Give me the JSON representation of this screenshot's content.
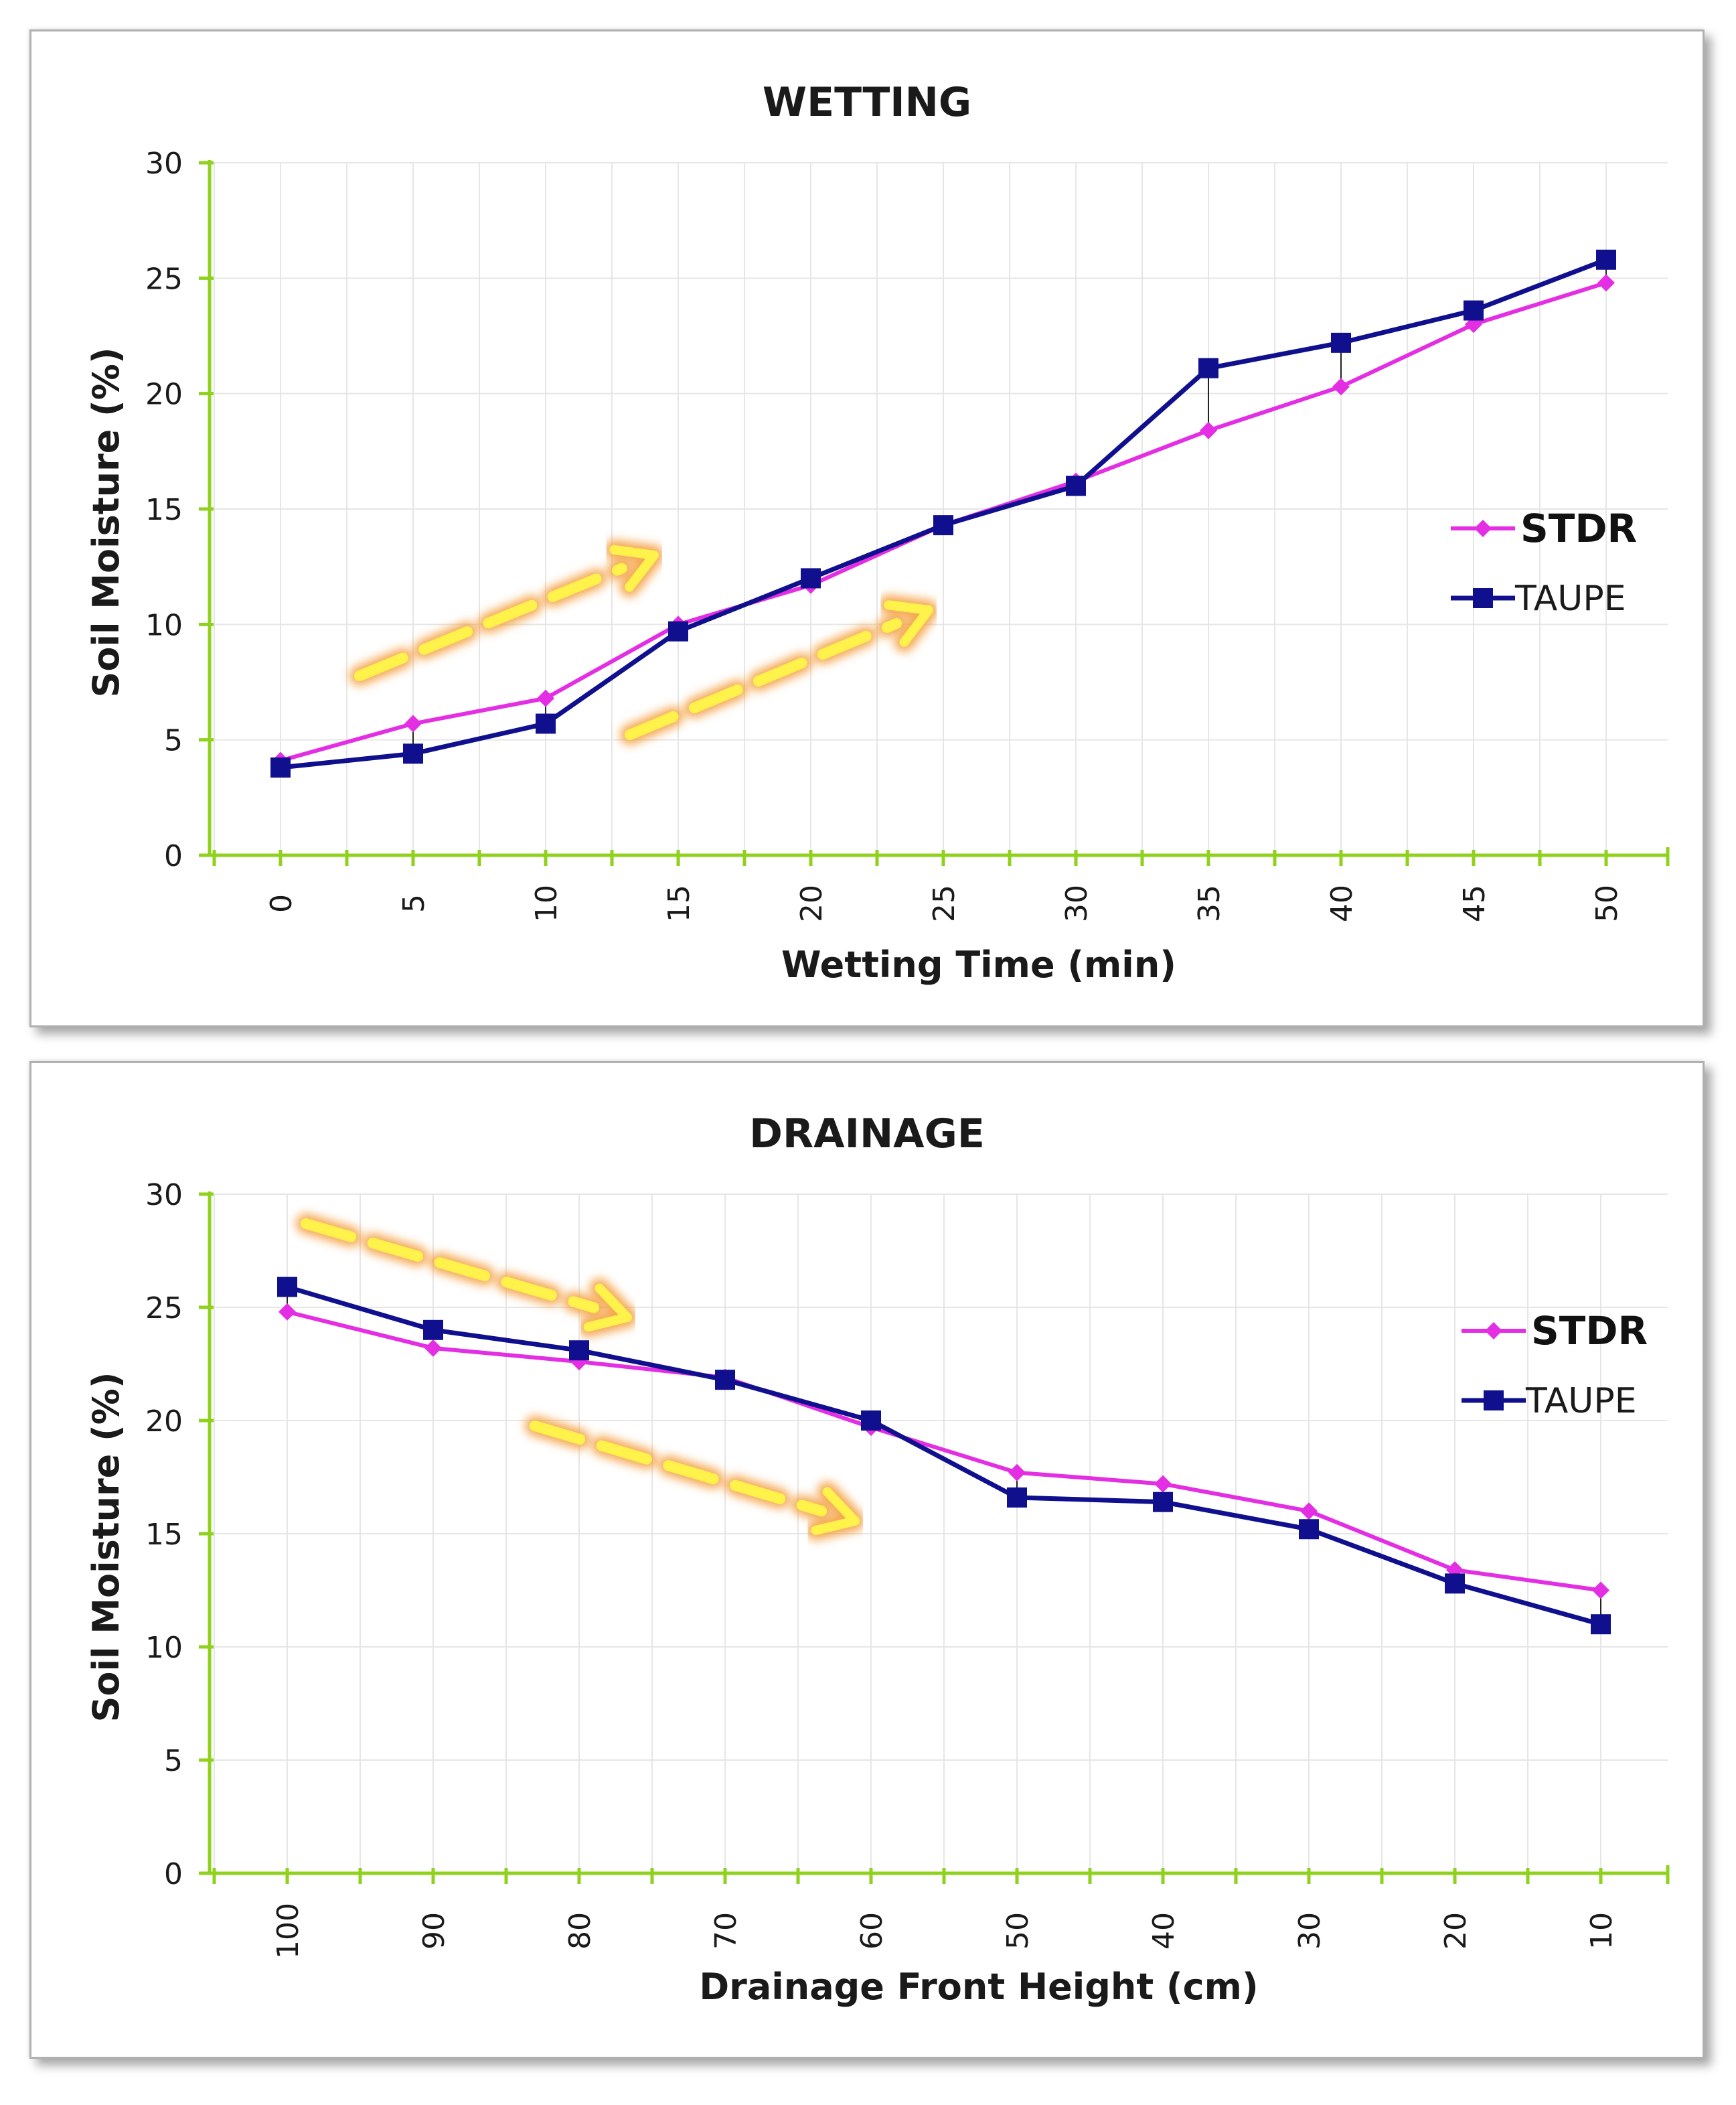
{
  "charts": [
    {
      "id": "wetting",
      "title": "WETTING",
      "xlabel": "Wetting Time (min)",
      "ylabel": "Soil Moisture (%)"
    },
    {
      "id": "drainage",
      "title": "DRAINAGE",
      "xlabel": "Drainage Front Height (cm)",
      "ylabel": "Soil Moisture (%)"
    }
  ],
  "colors": {
    "stdr": "#e32ee3",
    "taupe": "#10108f",
    "axis": "#8fd11c",
    "grid": "#e6e6e6",
    "arrow_fill": "#fff24a",
    "arrow_glow": "#f39a36"
  },
  "chart_data": [
    {
      "type": "line",
      "title": "WETTING",
      "xlabel": "Wetting Time (min)",
      "ylabel": "Soil Moisture (%)",
      "categories": [
        "0",
        "5",
        "10",
        "15",
        "20",
        "25",
        "30",
        "35",
        "40",
        "45",
        "50"
      ],
      "ylim": [
        0,
        30
      ],
      "yticks": [
        0,
        5,
        10,
        15,
        20,
        25,
        30
      ],
      "grid": true,
      "legend_position": "right",
      "series": [
        {
          "name": "STDR",
          "marker": "diamond",
          "values": [
            4.1,
            5.7,
            6.8,
            10.0,
            11.7,
            14.3,
            16.2,
            18.4,
            20.3,
            23.0,
            24.8
          ]
        },
        {
          "name": "TAUPE",
          "marker": "square",
          "values": [
            3.8,
            4.4,
            5.7,
            9.7,
            12.0,
            14.3,
            16.0,
            21.1,
            22.2,
            23.6,
            25.8
          ]
        }
      ]
    },
    {
      "type": "line",
      "title": "DRAINAGE",
      "xlabel": "Drainage Front Height (cm)",
      "ylabel": "Soil Moisture (%)",
      "categories": [
        "100",
        "90",
        "80",
        "70",
        "60",
        "50",
        "40",
        "30",
        "20",
        "10"
      ],
      "ylim": [
        0,
        30
      ],
      "yticks": [
        0,
        5,
        10,
        15,
        20,
        25,
        30
      ],
      "grid": true,
      "legend_position": "right",
      "series": [
        {
          "name": "STDR",
          "marker": "diamond",
          "values": [
            24.8,
            23.2,
            22.6,
            21.9,
            19.7,
            17.7,
            17.2,
            16.0,
            13.4,
            12.5
          ]
        },
        {
          "name": "TAUPE",
          "marker": "square",
          "values": [
            25.9,
            24.0,
            23.1,
            21.8,
            20.0,
            16.6,
            16.4,
            15.2,
            12.8,
            11.0
          ]
        }
      ]
    }
  ]
}
